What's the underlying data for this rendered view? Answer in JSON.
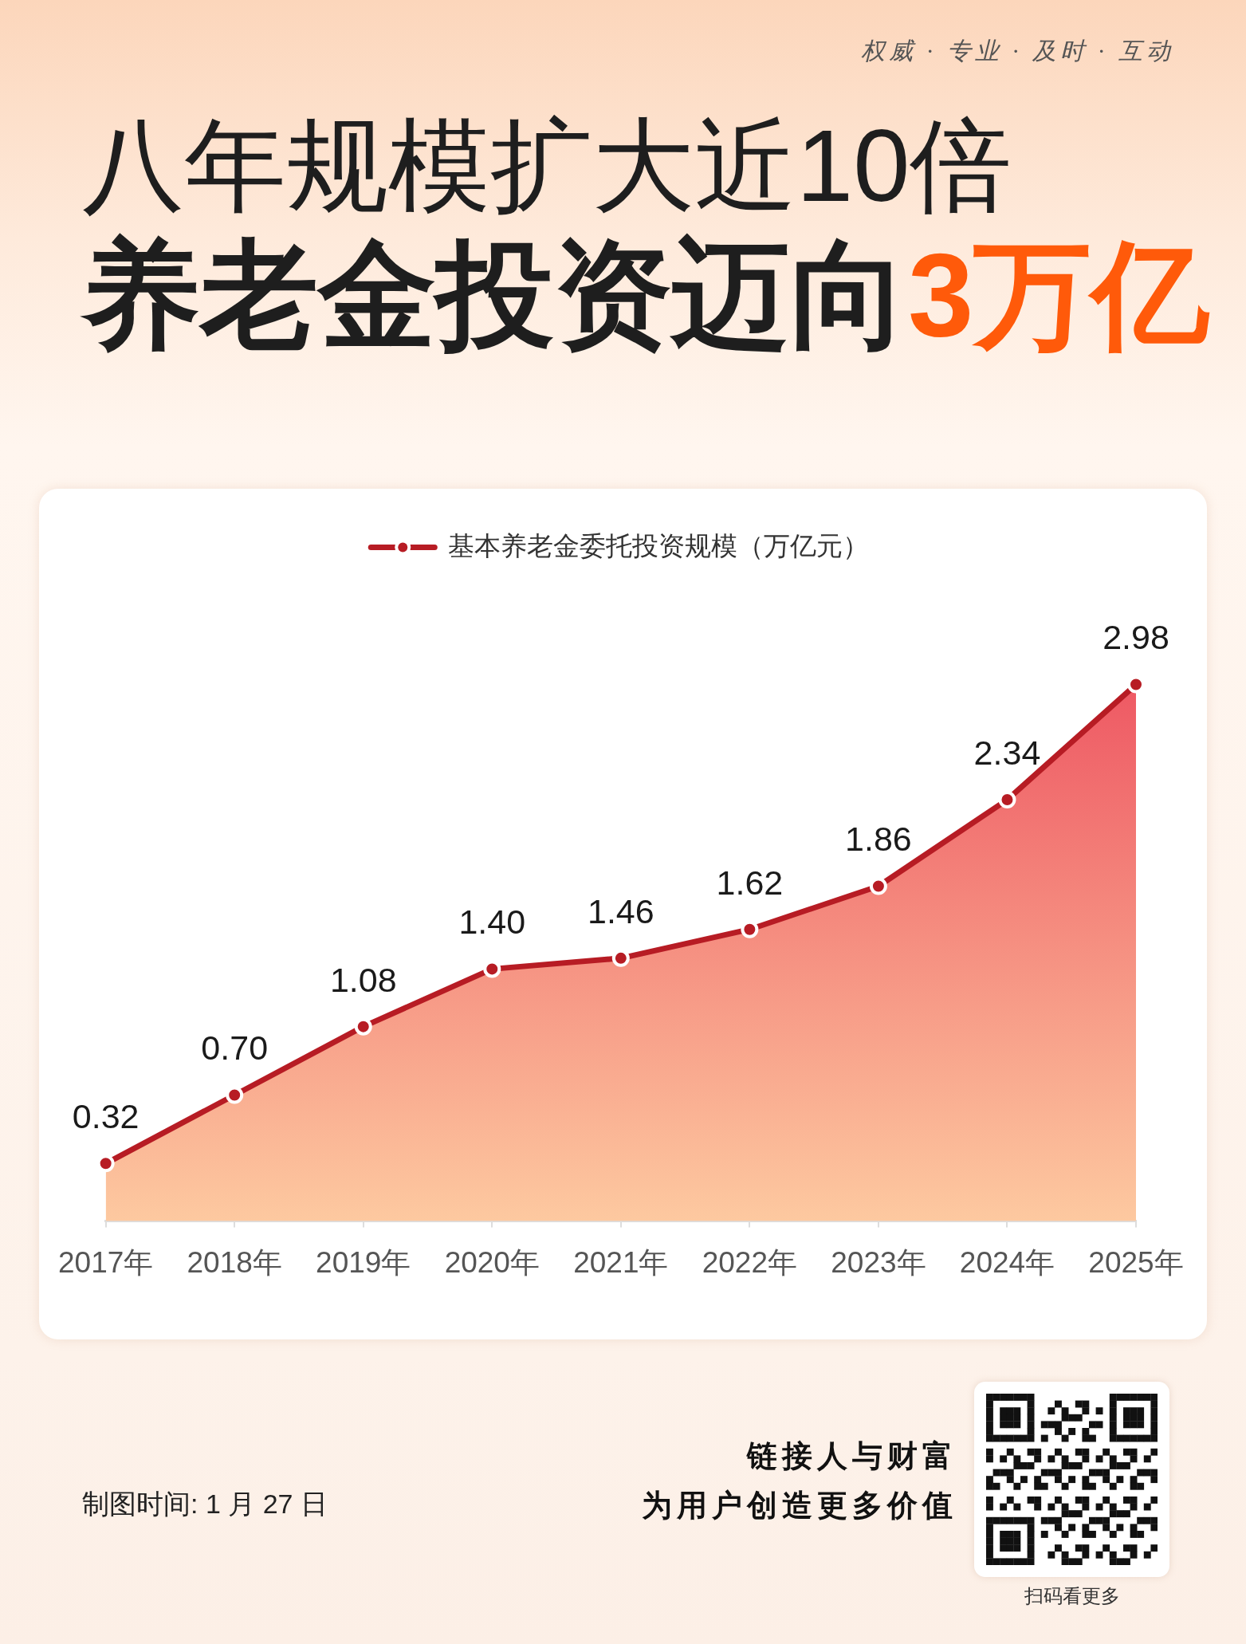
{
  "chart_data": {
    "type": "area",
    "title": "八年规模扩大近10倍",
    "subtitle": "养老金投资迈向3万亿",
    "categories": [
      "2017年",
      "2018年",
      "2019年",
      "2020年",
      "2021年",
      "2022年",
      "2023年",
      "2024年",
      "2025年"
    ],
    "series": [
      {
        "name": "基本养老金委托投资规模（万亿元）",
        "color": "#b71c24",
        "values": [
          0.32,
          0.7,
          1.08,
          1.4,
          1.46,
          1.62,
          1.86,
          2.34,
          2.98
        ],
        "value_labels": [
          "0.32",
          "0.70",
          "1.08",
          "1.40",
          "1.46",
          "1.62",
          "1.86",
          "2.34",
          "2.98"
        ]
      }
    ],
    "legend": "top",
    "marker": "circle",
    "annotations": [
      "权威 · 专业 · 及时 · 互动",
      "制图时间: 1 月 27 日",
      "链接人与财富",
      "为用户创造更多价值",
      "扫码看更多"
    ]
  }
}
